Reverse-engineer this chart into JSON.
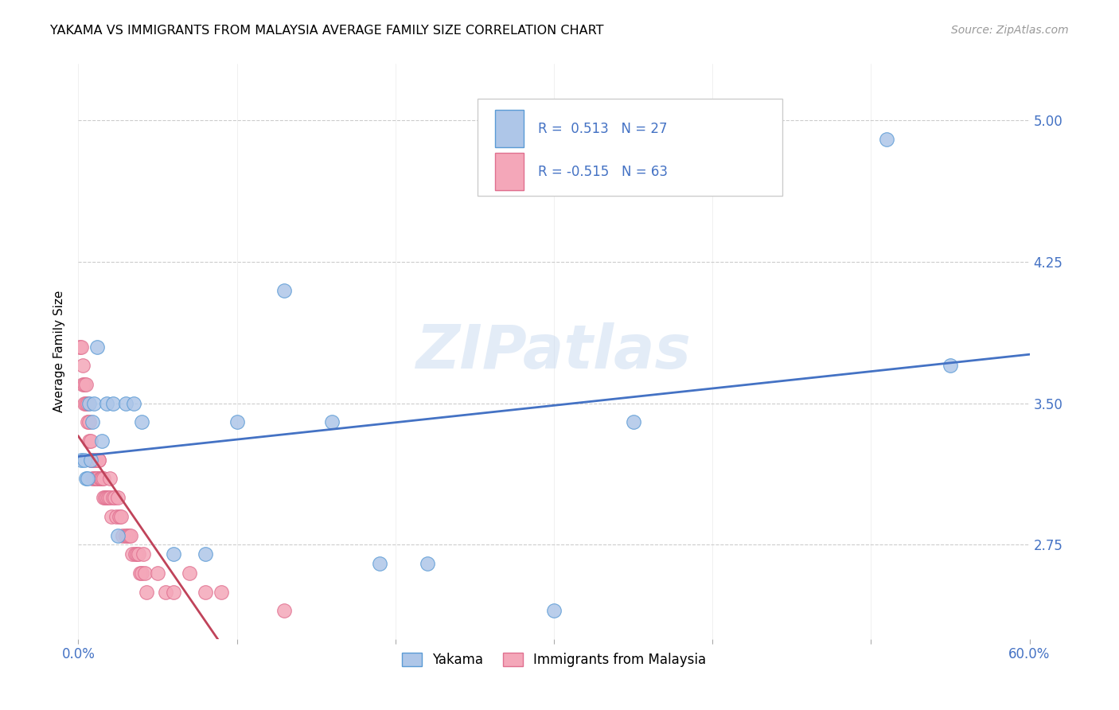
{
  "title": "YAKAMA VS IMMIGRANTS FROM MALAYSIA AVERAGE FAMILY SIZE CORRELATION CHART",
  "source": "Source: ZipAtlas.com",
  "ylabel": "Average Family Size",
  "yticks": [
    2.75,
    3.5,
    4.25,
    5.0
  ],
  "xlim": [
    0.0,
    0.6
  ],
  "ylim": [
    2.25,
    5.3
  ],
  "yakama_R": "0.513",
  "yakama_N": "27",
  "malaysia_R": "-0.515",
  "malaysia_N": "63",
  "yakama_color": "#aec6e8",
  "malaysia_color": "#f4a7b9",
  "yakama_edge": "#5b9bd5",
  "malaysia_edge": "#e07090",
  "trend_blue": "#4472c4",
  "trend_pink": "#c0435a",
  "watermark": "ZIPatlas",
  "yakama_x": [
    0.002,
    0.004,
    0.005,
    0.006,
    0.007,
    0.008,
    0.009,
    0.01,
    0.012,
    0.015,
    0.018,
    0.022,
    0.025,
    0.03,
    0.035,
    0.04,
    0.06,
    0.08,
    0.1,
    0.13,
    0.16,
    0.19,
    0.22,
    0.3,
    0.35,
    0.51,
    0.55
  ],
  "yakama_y": [
    3.2,
    3.2,
    3.1,
    3.1,
    3.5,
    3.2,
    3.4,
    3.5,
    3.8,
    3.3,
    3.5,
    3.5,
    2.8,
    3.5,
    3.5,
    3.4,
    2.7,
    2.7,
    3.4,
    4.1,
    3.4,
    2.65,
    2.65,
    2.4,
    3.4,
    4.9,
    3.7
  ],
  "malaysia_x": [
    0.001,
    0.002,
    0.003,
    0.003,
    0.004,
    0.004,
    0.005,
    0.005,
    0.006,
    0.006,
    0.007,
    0.007,
    0.008,
    0.008,
    0.009,
    0.009,
    0.01,
    0.01,
    0.011,
    0.011,
    0.012,
    0.012,
    0.013,
    0.013,
    0.014,
    0.014,
    0.015,
    0.015,
    0.016,
    0.016,
    0.017,
    0.018,
    0.019,
    0.02,
    0.02,
    0.021,
    0.022,
    0.023,
    0.024,
    0.025,
    0.026,
    0.027,
    0.028,
    0.03,
    0.031,
    0.032,
    0.033,
    0.034,
    0.036,
    0.037,
    0.038,
    0.039,
    0.04,
    0.041,
    0.042,
    0.043,
    0.05,
    0.055,
    0.06,
    0.07,
    0.08,
    0.09,
    0.13
  ],
  "malaysia_y": [
    3.8,
    3.8,
    3.6,
    3.7,
    3.6,
    3.5,
    3.6,
    3.5,
    3.5,
    3.4,
    3.4,
    3.3,
    3.3,
    3.2,
    3.2,
    3.1,
    3.1,
    3.2,
    3.1,
    3.2,
    3.1,
    3.1,
    3.2,
    3.2,
    3.1,
    3.1,
    3.1,
    3.1,
    3.1,
    3.0,
    3.0,
    3.0,
    3.0,
    3.1,
    3.0,
    2.9,
    3.0,
    3.0,
    2.9,
    3.0,
    2.9,
    2.9,
    2.8,
    2.8,
    2.8,
    2.8,
    2.8,
    2.7,
    2.7,
    2.7,
    2.7,
    2.6,
    2.6,
    2.7,
    2.6,
    2.5,
    2.6,
    2.5,
    2.5,
    2.6,
    2.5,
    2.5,
    2.4
  ]
}
